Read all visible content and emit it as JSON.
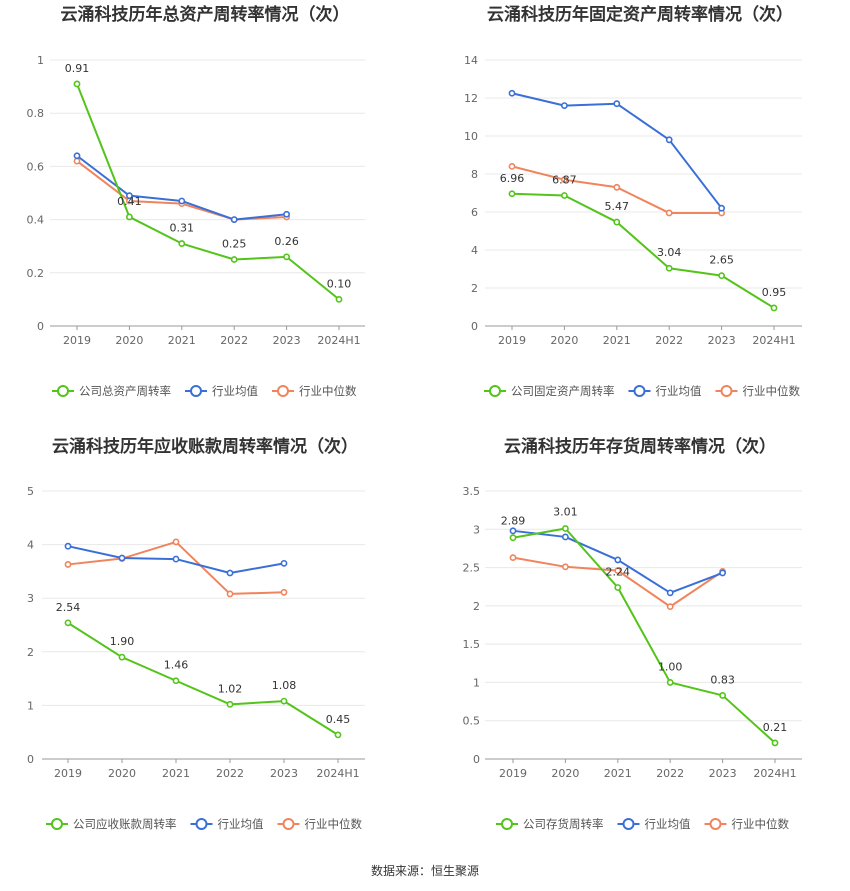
{
  "source": "数据来源：恒生聚源",
  "legend_common": {
    "avg": "行业均值",
    "median": "行业中位数"
  },
  "colors": {
    "company": "#52c41a",
    "avg": "#3a6fd8",
    "median": "#f0845c",
    "grid": "#e8e8e8",
    "axis": "#999999",
    "tick_text": "#666666",
    "title": "#333333"
  },
  "chart_data": [
    {
      "type": "line",
      "title": "云涌科技历年总资产周转率情况（次）",
      "categories": [
        "2019",
        "2020",
        "2021",
        "2022",
        "2023",
        "2024H1"
      ],
      "ylim": [
        0,
        1
      ],
      "yticks": [
        0,
        0.2,
        0.4,
        0.6,
        0.8,
        1
      ],
      "ytick_labels": [
        "0",
        "0.2",
        "0.4",
        "0.6",
        "0.8",
        "1"
      ],
      "series": [
        {
          "name": "公司总资产周转率",
          "role": "company",
          "values": [
            0.91,
            0.41,
            0.31,
            0.25,
            0.26,
            0.1
          ],
          "labels": [
            "0.91",
            "0.41",
            "0.31",
            "0.25",
            "0.26",
            "0.10"
          ]
        },
        {
          "name": "行业均值",
          "role": "avg",
          "values": [
            0.64,
            0.49,
            0.47,
            0.4,
            0.42,
            null
          ]
        },
        {
          "name": "行业中位数",
          "role": "median",
          "values": [
            0.62,
            0.47,
            0.46,
            0.4,
            0.41,
            null
          ]
        }
      ]
    },
    {
      "type": "line",
      "title": "云涌科技历年固定资产周转率情况（次）",
      "categories": [
        "2019",
        "2020",
        "2021",
        "2022",
        "2023",
        "2024H1"
      ],
      "ylim": [
        0,
        14
      ],
      "yticks": [
        0,
        2,
        4,
        6,
        8,
        10,
        12,
        14
      ],
      "ytick_labels": [
        "0",
        "2",
        "4",
        "6",
        "8",
        "10",
        "12",
        "14"
      ],
      "series": [
        {
          "name": "公司固定资产周转率",
          "role": "company",
          "values": [
            6.96,
            6.87,
            5.47,
            3.04,
            2.65,
            0.95
          ],
          "labels": [
            "6.96",
            "6.87",
            "5.47",
            "3.04",
            "2.65",
            "0.95"
          ]
        },
        {
          "name": "行业均值",
          "role": "avg",
          "values": [
            12.25,
            11.6,
            11.7,
            9.8,
            6.2,
            null
          ]
        },
        {
          "name": "行业中位数",
          "role": "median",
          "values": [
            8.4,
            7.7,
            7.3,
            5.95,
            5.95,
            null
          ]
        }
      ]
    },
    {
      "type": "line",
      "title": "云涌科技历年应收账款周转率情况（次）",
      "categories": [
        "2019",
        "2020",
        "2021",
        "2022",
        "2023",
        "2024H1"
      ],
      "ylim": [
        0,
        5
      ],
      "yticks": [
        0,
        1,
        2,
        3,
        4,
        5
      ],
      "ytick_labels": [
        "0",
        "1",
        "2",
        "3",
        "4",
        "5"
      ],
      "series": [
        {
          "name": "公司应收账款周转率",
          "role": "company",
          "values": [
            2.54,
            1.9,
            1.46,
            1.02,
            1.08,
            0.45
          ],
          "labels": [
            "2.54",
            "1.90",
            "1.46",
            "1.02",
            "1.08",
            "0.45"
          ]
        },
        {
          "name": "行业均值",
          "role": "avg",
          "values": [
            3.97,
            3.75,
            3.73,
            3.47,
            3.65,
            null
          ]
        },
        {
          "name": "行业中位数",
          "role": "median",
          "values": [
            3.63,
            3.74,
            4.05,
            3.08,
            3.11,
            null
          ]
        }
      ]
    },
    {
      "type": "line",
      "title": "云涌科技历年存货周转率情况（次）",
      "categories": [
        "2019",
        "2020",
        "2021",
        "2022",
        "2023",
        "2024H1"
      ],
      "ylim": [
        0,
        3.5
      ],
      "yticks": [
        0,
        0.5,
        1,
        1.5,
        2,
        2.5,
        3,
        3.5
      ],
      "ytick_labels": [
        "0",
        "0.5",
        "1",
        "1.5",
        "2",
        "2.5",
        "3",
        "3.5"
      ],
      "series": [
        {
          "name": "公司存货周转率",
          "role": "company",
          "values": [
            2.89,
            3.01,
            2.24,
            1.0,
            0.83,
            0.21
          ],
          "labels": [
            "2.89",
            "3.01",
            "2.24",
            "1.00",
            "0.83",
            "0.21"
          ]
        },
        {
          "name": "行业均值",
          "role": "avg",
          "values": [
            2.98,
            2.9,
            2.6,
            2.17,
            2.43,
            null
          ]
        },
        {
          "name": "行业中位数",
          "role": "median",
          "values": [
            2.63,
            2.51,
            2.46,
            1.99,
            2.45,
            null
          ]
        }
      ]
    }
  ]
}
